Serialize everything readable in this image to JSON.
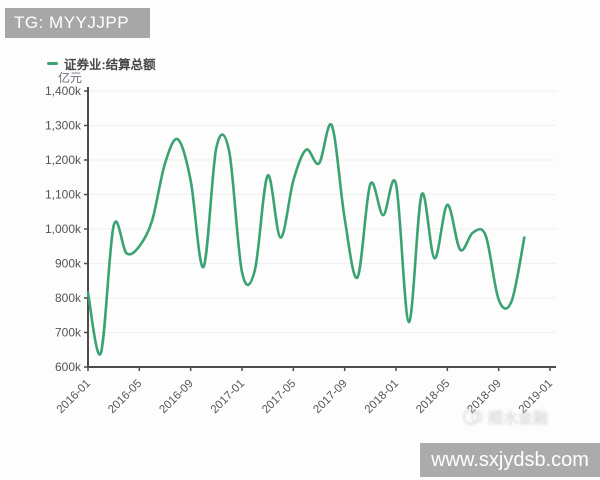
{
  "header": {
    "badge_text": "TG: MYYJJPP",
    "badge_bg": "#a7a7a7"
  },
  "legend": {
    "label": "证券业:结算总额",
    "color": "#3ba272"
  },
  "unit_label": "亿元",
  "watermark": {
    "url_text": "www.sxjydsb.com",
    "bar_bg": "#ababab",
    "faint_logo_text": "顺水金融"
  },
  "chart_data": {
    "type": "line",
    "title": "证券业:结算总额",
    "ylabel": "亿元",
    "smooth": true,
    "grid": true,
    "legend_position": "top-left",
    "line_color": "#3ba272",
    "axis_color": "#4d4d4d",
    "grid_color": "#f0f0f0",
    "tick_label_color": "#555555",
    "ylim": [
      600,
      1400
    ],
    "y_tick_step": 100,
    "y_tick_labels": [
      "600k",
      "700k",
      "800k",
      "900k",
      "1,000k",
      "1,100k",
      "1,200k",
      "1,300k",
      "1,400k"
    ],
    "x_tick_labels": [
      "2016-01",
      "2016-05",
      "2016-09",
      "2017-01",
      "2017-05",
      "2017-09",
      "2018-01",
      "2018-05",
      "2018-09",
      "2019-01"
    ],
    "x_tick_month_step": 4,
    "x_axis_total_months": 36,
    "x": [
      "2016-01",
      "2016-02",
      "2016-03",
      "2016-04",
      "2016-05",
      "2016-06",
      "2016-07",
      "2016-08",
      "2016-09",
      "2016-10",
      "2016-11",
      "2016-12",
      "2017-01",
      "2017-02",
      "2017-03",
      "2017-04",
      "2017-05",
      "2017-06",
      "2017-07",
      "2017-08",
      "2017-09",
      "2017-10",
      "2017-11",
      "2017-12",
      "2018-01",
      "2018-02",
      "2018-03",
      "2018-04",
      "2018-05",
      "2018-06",
      "2018-07",
      "2018-08",
      "2018-09",
      "2018-10",
      "2018-11"
    ],
    "values": [
      815,
      640,
      1010,
      930,
      950,
      1025,
      1190,
      1260,
      1140,
      890,
      1235,
      1225,
      875,
      880,
      1155,
      975,
      1140,
      1230,
      1190,
      1300,
      1030,
      860,
      1130,
      1040,
      1130,
      730,
      1100,
      915,
      1070,
      940,
      990,
      980,
      795,
      790,
      975
    ],
    "value_unit_suffix": "k 亿元"
  }
}
